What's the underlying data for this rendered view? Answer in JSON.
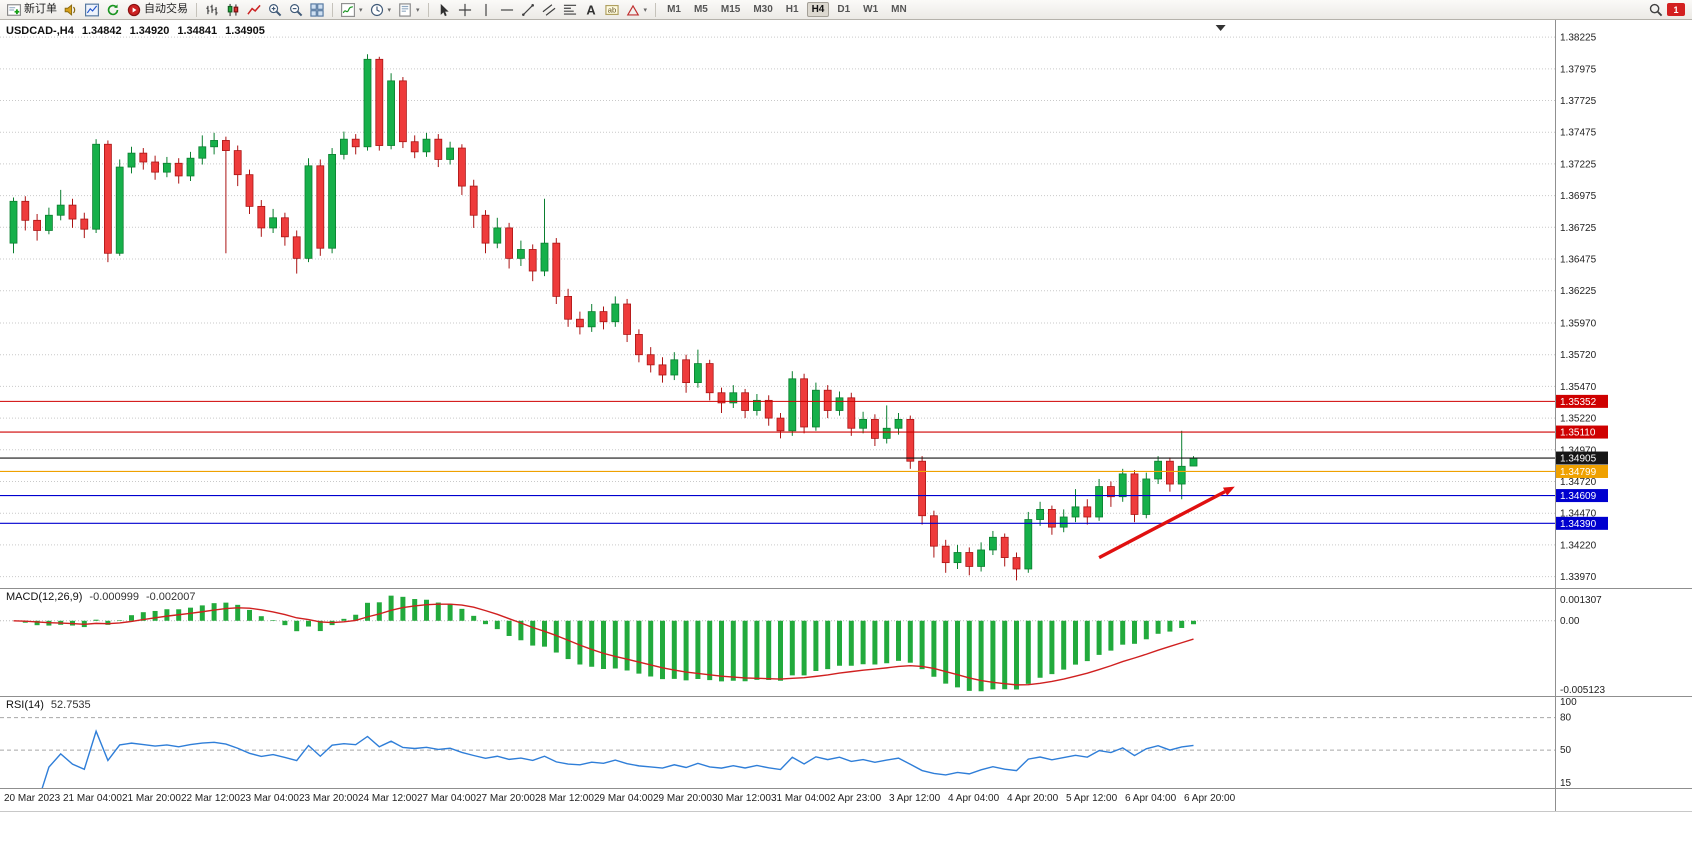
{
  "toolbar": {
    "groups": [
      {
        "items": [
          {
            "name": "new-order-button",
            "icon": "new-order",
            "label": "新订单"
          },
          {
            "name": "sound-alert-button",
            "icon": "speaker"
          },
          {
            "name": "market-watch-button",
            "icon": "chart-window"
          },
          {
            "name": "refresh-button",
            "icon": "refresh"
          },
          {
            "name": "autotrading-button",
            "icon": "autotrade",
            "label": "自动交易"
          }
        ]
      },
      {
        "items": [
          {
            "name": "bar-chart-button",
            "icon": "bars"
          },
          {
            "name": "candlestick-chart-button",
            "icon": "candles"
          },
          {
            "name": "line-chart-button",
            "icon": "linechart"
          },
          {
            "name": "zoom-in-button",
            "icon": "zoom-in"
          },
          {
            "name": "zoom-out-button",
            "icon": "zoom-out"
          },
          {
            "name": "tile-windows-button",
            "icon": "tile"
          }
        ]
      },
      {
        "items": [
          {
            "name": "indicators-button",
            "icon": "indicator",
            "dropdown": true
          },
          {
            "name": "periods-button",
            "icon": "clock",
            "dropdown": true
          },
          {
            "name": "templates-button",
            "icon": "template",
            "dropdown": true
          }
        ]
      },
      {
        "items": [
          {
            "name": "cursor-button",
            "icon": "cursor"
          },
          {
            "name": "crosshair-button",
            "icon": "crosshair"
          },
          {
            "name": "vertical-line-button",
            "icon": "vline"
          },
          {
            "name": "horizontal-line-button",
            "icon": "hline"
          },
          {
            "name": "trendline-button",
            "icon": "trendline"
          },
          {
            "name": "channel-button",
            "icon": "channel"
          },
          {
            "name": "fibonacci-button",
            "icon": "fibo"
          },
          {
            "name": "text-button",
            "icon": "text-a"
          },
          {
            "name": "text-label-button",
            "icon": "text-label"
          },
          {
            "name": "shapes-button",
            "icon": "shapes",
            "dropdown": true
          }
        ]
      }
    ],
    "timeframes": {
      "items": [
        "M1",
        "M5",
        "M15",
        "M30",
        "H1",
        "H4",
        "D1",
        "W1",
        "MN"
      ],
      "active": "H4"
    },
    "right": {
      "notification_count": "1"
    }
  },
  "chart_data": {
    "type": "candlestick",
    "title": {
      "symbol": "USDCAD-,H4",
      "open": "1.34842",
      "high": "1.34920",
      "low": "1.34841",
      "close": "1.34905"
    },
    "price_axis": {
      "max": 1.3836,
      "min": 1.3388,
      "ticks": [
        "1.38225",
        "1.37975",
        "1.37725",
        "1.37475",
        "1.37225",
        "1.36975",
        "1.36725",
        "1.36475",
        "1.36225",
        "1.35970",
        "1.35720",
        "1.35470",
        "1.35220",
        "1.34970",
        "1.34720",
        "1.34470",
        "1.34220",
        "1.33970"
      ]
    },
    "time_labels": [
      "20 Mar 2023",
      "21 Mar 04:00",
      "21 Mar 20:00",
      "22 Mar 12:00",
      "23 Mar 04:00",
      "23 Mar 20:00",
      "24 Mar 12:00",
      "27 Mar 04:00",
      "27 Mar 20:00",
      "28 Mar 12:00",
      "29 Mar 04:00",
      "29 Mar 20:00",
      "30 Mar 12:00",
      "31 Mar 04:00",
      "2 Apr 23:00",
      "3 Apr 12:00",
      "4 Apr 04:00",
      "4 Apr 20:00",
      "5 Apr 12:00",
      "6 Apr 04:00",
      "6 Apr 20:00"
    ],
    "label_every": 5,
    "candles": [
      [
        1.366,
        1.3696,
        1.3652,
        1.3693
      ],
      [
        1.3693,
        1.3697,
        1.367,
        1.3678
      ],
      [
        1.3678,
        1.3683,
        1.3662,
        1.367
      ],
      [
        1.367,
        1.3688,
        1.3667,
        1.3682
      ],
      [
        1.3682,
        1.3702,
        1.3678,
        1.369
      ],
      [
        1.369,
        1.3695,
        1.3672,
        1.3679
      ],
      [
        1.3679,
        1.3684,
        1.3664,
        1.3671
      ],
      [
        1.3671,
        1.3742,
        1.3668,
        1.3738
      ],
      [
        1.3738,
        1.3741,
        1.3645,
        1.3652
      ],
      [
        1.3652,
        1.3726,
        1.365,
        1.372
      ],
      [
        1.372,
        1.3736,
        1.3715,
        1.3731
      ],
      [
        1.3731,
        1.3735,
        1.3718,
        1.3724
      ],
      [
        1.3724,
        1.3729,
        1.371,
        1.3716
      ],
      [
        1.3716,
        1.3728,
        1.3712,
        1.3723
      ],
      [
        1.3723,
        1.3727,
        1.3707,
        1.3713
      ],
      [
        1.3713,
        1.3732,
        1.3709,
        1.3727
      ],
      [
        1.3727,
        1.3745,
        1.3722,
        1.3736
      ],
      [
        1.3736,
        1.3747,
        1.373,
        1.3741
      ],
      [
        1.3741,
        1.3744,
        1.3652,
        1.3733
      ],
      [
        1.3733,
        1.3737,
        1.3705,
        1.3714
      ],
      [
        1.3714,
        1.3718,
        1.3683,
        1.3689
      ],
      [
        1.3689,
        1.3694,
        1.3665,
        1.3672
      ],
      [
        1.3672,
        1.3687,
        1.3668,
        1.368
      ],
      [
        1.368,
        1.3684,
        1.3658,
        1.3665
      ],
      [
        1.3665,
        1.367,
        1.3636,
        1.3648
      ],
      [
        1.3648,
        1.3727,
        1.3645,
        1.3721
      ],
      [
        1.3721,
        1.3726,
        1.365,
        1.3656
      ],
      [
        1.3656,
        1.3735,
        1.3652,
        1.373
      ],
      [
        1.373,
        1.3748,
        1.3726,
        1.3742
      ],
      [
        1.3742,
        1.3746,
        1.373,
        1.3736
      ],
      [
        1.3736,
        1.3809,
        1.3733,
        1.3805
      ],
      [
        1.3805,
        1.3807,
        1.3733,
        1.3737
      ],
      [
        1.3737,
        1.3794,
        1.3734,
        1.3788
      ],
      [
        1.3788,
        1.3791,
        1.3735,
        1.374
      ],
      [
        1.374,
        1.3745,
        1.3727,
        1.3732
      ],
      [
        1.3732,
        1.3747,
        1.3728,
        1.3742
      ],
      [
        1.3742,
        1.3746,
        1.372,
        1.3726
      ],
      [
        1.3726,
        1.374,
        1.3722,
        1.3735
      ],
      [
        1.3735,
        1.3738,
        1.3698,
        1.3705
      ],
      [
        1.3705,
        1.371,
        1.3672,
        1.3682
      ],
      [
        1.3682,
        1.3686,
        1.3652,
        1.366
      ],
      [
        1.366,
        1.368,
        1.3656,
        1.3672
      ],
      [
        1.3672,
        1.3676,
        1.364,
        1.3648
      ],
      [
        1.3648,
        1.3662,
        1.3642,
        1.3655
      ],
      [
        1.3655,
        1.3659,
        1.363,
        1.3638
      ],
      [
        1.3638,
        1.3695,
        1.3634,
        1.366
      ],
      [
        1.366,
        1.3664,
        1.3612,
        1.3618
      ],
      [
        1.3618,
        1.3624,
        1.3594,
        1.36
      ],
      [
        1.36,
        1.3606,
        1.3588,
        1.3594
      ],
      [
        1.3594,
        1.3612,
        1.359,
        1.3606
      ],
      [
        1.3606,
        1.361,
        1.3592,
        1.3598
      ],
      [
        1.3598,
        1.3618,
        1.3594,
        1.3612
      ],
      [
        1.3612,
        1.3616,
        1.3582,
        1.3588
      ],
      [
        1.3588,
        1.3592,
        1.3566,
        1.3572
      ],
      [
        1.3572,
        1.3578,
        1.3558,
        1.3564
      ],
      [
        1.3564,
        1.357,
        1.355,
        1.3556
      ],
      [
        1.3556,
        1.3574,
        1.3552,
        1.3568
      ],
      [
        1.3568,
        1.3572,
        1.3542,
        1.355
      ],
      [
        1.355,
        1.3576,
        1.3546,
        1.3565
      ],
      [
        1.3565,
        1.3568,
        1.3536,
        1.3542
      ],
      [
        1.3542,
        1.3546,
        1.3526,
        1.3534
      ],
      [
        1.3534,
        1.3548,
        1.353,
        1.3542
      ],
      [
        1.3542,
        1.3545,
        1.3522,
        1.3528
      ],
      [
        1.3528,
        1.3541,
        1.3524,
        1.3536
      ],
      [
        1.3536,
        1.354,
        1.3516,
        1.3522
      ],
      [
        1.3522,
        1.3526,
        1.3506,
        1.3512
      ],
      [
        1.3512,
        1.3559,
        1.3508,
        1.3553
      ],
      [
        1.3553,
        1.3557,
        1.351,
        1.3515
      ],
      [
        1.3515,
        1.355,
        1.3512,
        1.3544
      ],
      [
        1.3544,
        1.3548,
        1.3522,
        1.3528
      ],
      [
        1.3528,
        1.3543,
        1.3524,
        1.3538
      ],
      [
        1.3538,
        1.3542,
        1.3508,
        1.3514
      ],
      [
        1.3514,
        1.3527,
        1.351,
        1.3521
      ],
      [
        1.3521,
        1.3525,
        1.35,
        1.3506
      ],
      [
        1.3506,
        1.3532,
        1.3502,
        1.3514
      ],
      [
        1.3514,
        1.3526,
        1.3509,
        1.3521
      ],
      [
        1.3521,
        1.3524,
        1.3482,
        1.3488
      ],
      [
        1.3488,
        1.3492,
        1.3438,
        1.3445
      ],
      [
        1.3445,
        1.3449,
        1.3412,
        1.3421
      ],
      [
        1.3421,
        1.3426,
        1.34,
        1.3408
      ],
      [
        1.3408,
        1.3422,
        1.3403,
        1.3416
      ],
      [
        1.3416,
        1.342,
        1.3398,
        1.3405
      ],
      [
        1.3405,
        1.3424,
        1.3401,
        1.3418
      ],
      [
        1.3418,
        1.3433,
        1.3414,
        1.3428
      ],
      [
        1.3428,
        1.3431,
        1.3405,
        1.3412
      ],
      [
        1.3412,
        1.3416,
        1.3394,
        1.3403
      ],
      [
        1.3403,
        1.3448,
        1.34,
        1.3442
      ],
      [
        1.3442,
        1.3456,
        1.3437,
        1.345
      ],
      [
        1.345,
        1.3453,
        1.343,
        1.3436
      ],
      [
        1.3436,
        1.345,
        1.3432,
        1.3444
      ],
      [
        1.3444,
        1.3466,
        1.344,
        1.3452
      ],
      [
        1.3452,
        1.3458,
        1.3438,
        1.3444
      ],
      [
        1.3444,
        1.3474,
        1.3441,
        1.3468
      ],
      [
        1.3468,
        1.3472,
        1.3452,
        1.346
      ],
      [
        1.346,
        1.3482,
        1.3456,
        1.3478
      ],
      [
        1.3478,
        1.3481,
        1.344,
        1.3446
      ],
      [
        1.3446,
        1.3479,
        1.3443,
        1.3474
      ],
      [
        1.3474,
        1.3492,
        1.347,
        1.3488
      ],
      [
        1.3488,
        1.3491,
        1.3464,
        1.347
      ],
      [
        1.347,
        1.3512,
        1.3458,
        1.3484
      ],
      [
        1.34842,
        1.3492,
        1.34841,
        1.34905
      ]
    ],
    "hlines": [
      {
        "price": 1.35352,
        "label": "1.35352",
        "color": "#cf0000",
        "badge": "#cf0000",
        "text": "#ffffff"
      },
      {
        "price": 1.3511,
        "label": "1.35110",
        "color": "#cf0000",
        "badge": "#cf0000",
        "text": "#ffffff"
      },
      {
        "price": 1.34905,
        "label": "1.34905",
        "color": "#151515",
        "badge": "#151515",
        "text": "#ffffff"
      },
      {
        "price": 1.34799,
        "label": "1.34799",
        "color": "#efa100",
        "badge": "#efa100",
        "text": "#ffffff"
      },
      {
        "price": 1.34609,
        "label": "1.34609",
        "color": "#0000cf",
        "badge": "#0000cf",
        "text": "#ffffff"
      },
      {
        "price": 1.3439,
        "label": "1.34390",
        "color": "#0000cf",
        "badge": "#0000cf",
        "text": "#ffffff"
      }
    ],
    "arrow": {
      "from_index": 92,
      "from_price": 1.3412,
      "to_index": 103.5,
      "to_price": 1.3468,
      "color": "#e01010"
    },
    "shift_marker_index": 102.3,
    "colors": {
      "up": "#16b04a",
      "up_edge": "#0b7f30",
      "down": "#ee3b3b",
      "down_edge": "#ab1414",
      "macd_hist": "#22aa3c",
      "macd_signal": "#d02020",
      "rsi_line": "#2f7ed8",
      "grid": "#c9c9c9"
    },
    "macd": {
      "name": "MACD(12,26,9)",
      "value": "-0.000999",
      "signal_value": "-0.002007",
      "fast": 12,
      "slow": 26,
      "signal": 9,
      "axis": {
        "labels": [
          {
            "v": 0.001307,
            "t": "0.001307"
          },
          {
            "v": 0,
            "t": "0.00"
          },
          {
            "v": -0.005123,
            "t": "-0.005123"
          }
        ]
      }
    },
    "rsi": {
      "name": "RSI(14)",
      "value": "52.7535",
      "period": 14,
      "axis": {
        "max": 100,
        "min": 15,
        "levels": [
          80,
          50
        ],
        "labels": [
          {
            "v": 100,
            "t": "100"
          },
          {
            "v": 80,
            "t": "80"
          },
          {
            "v": 50,
            "t": "50"
          },
          {
            "v": 15,
            "t": "15"
          }
        ]
      }
    }
  }
}
